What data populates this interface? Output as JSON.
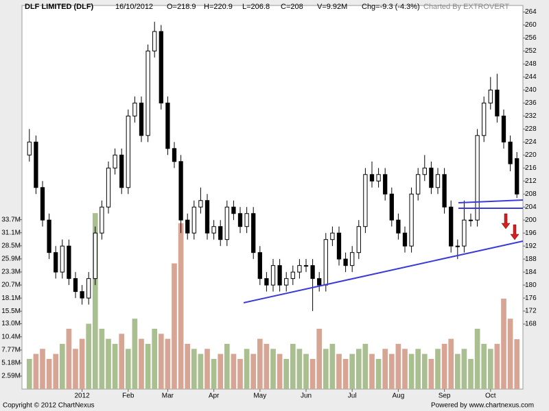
{
  "header": {
    "title": "DLF LIMITED (DLF)",
    "date": "16/10/2012",
    "open": "O=218.9",
    "high": "H=220.9",
    "low": "L=206.8",
    "close": "C=208",
    "volume": "V=9.92M",
    "change": "Chg=-9.3 (-4.3%)",
    "credit": "Charted By EXTROVERT"
  },
  "footer": {
    "copyright": "Copyright © 2012 ChartNexus",
    "powered": "Powered by www.chartnexus.com"
  },
  "chart_data": {
    "type": "candlestick",
    "categories": [
      null,
      null,
      null,
      null,
      null,
      null,
      null,
      null,
      "2012",
      null,
      null,
      null,
      null,
      null,
      null,
      "Feb",
      null,
      null,
      null,
      null,
      null,
      "Mar",
      null,
      null,
      null,
      null,
      null,
      null,
      "Apr",
      null,
      null,
      null,
      null,
      null,
      null,
      "May",
      null,
      null,
      null,
      null,
      null,
      null,
      "Jun",
      null,
      null,
      null,
      null,
      null,
      null,
      "Jul",
      null,
      null,
      null,
      null,
      null,
      null,
      "Aug",
      null,
      null,
      null,
      null,
      null,
      null,
      "Sep",
      null,
      null,
      null,
      null,
      null,
      null,
      "Oct",
      null,
      null,
      null,
      null
    ],
    "open": [
      220,
      224,
      210,
      200,
      190,
      184,
      192,
      182,
      178,
      176,
      182,
      196,
      204,
      216,
      220,
      210,
      232,
      236,
      226,
      252,
      258,
      236,
      222,
      218,
      200,
      196,
      204,
      206,
      196,
      198,
      194,
      204,
      202,
      198,
      202,
      190,
      182,
      180,
      186,
      180,
      182,
      184,
      186,
      186,
      182,
      180,
      194,
      196,
      188,
      186,
      190,
      198,
      214,
      212,
      214,
      208,
      200,
      196,
      192,
      208,
      214,
      216,
      210,
      214,
      204,
      192,
      192,
      200,
      200,
      226,
      236,
      240,
      232,
      224,
      218.9
    ],
    "high": [
      228,
      226,
      212,
      202,
      192,
      194,
      194,
      184,
      180,
      184,
      198,
      206,
      218,
      222,
      222,
      234,
      238,
      238,
      254,
      261,
      260,
      238,
      224,
      220,
      202,
      206,
      210,
      208,
      200,
      200,
      206,
      206,
      204,
      204,
      204,
      192,
      184,
      188,
      188,
      184,
      186,
      188,
      188,
      188,
      184,
      196,
      198,
      198,
      190,
      192,
      200,
      216,
      218,
      216,
      216,
      210,
      202,
      198,
      210,
      216,
      220,
      218,
      216,
      216,
      206,
      194,
      206,
      202,
      228,
      238,
      244,
      245,
      234,
      226,
      220.9
    ],
    "low": [
      218,
      208,
      198,
      188,
      182,
      182,
      180,
      176,
      174,
      174,
      180,
      194,
      202,
      214,
      208,
      208,
      230,
      224,
      224,
      250,
      234,
      220,
      216,
      196,
      194,
      194,
      202,
      194,
      194,
      192,
      192,
      200,
      196,
      196,
      188,
      180,
      178,
      178,
      178,
      178,
      180,
      182,
      184,
      172,
      178,
      178,
      192,
      186,
      184,
      184,
      188,
      196,
      210,
      210,
      206,
      198,
      194,
      190,
      190,
      206,
      212,
      208,
      208,
      202,
      190,
      188,
      190,
      198,
      198,
      224,
      234,
      230,
      222,
      215,
      206.8
    ],
    "close": [
      224,
      210,
      200,
      190,
      184,
      192,
      182,
      178,
      176,
      182,
      196,
      204,
      216,
      220,
      210,
      232,
      236,
      226,
      252,
      258,
      236,
      222,
      218,
      200,
      196,
      204,
      206,
      196,
      198,
      194,
      204,
      202,
      198,
      202,
      190,
      182,
      180,
      186,
      180,
      182,
      184,
      186,
      186,
      182,
      180,
      194,
      196,
      188,
      186,
      190,
      198,
      214,
      212,
      214,
      208,
      200,
      196,
      192,
      208,
      214,
      216,
      210,
      214,
      204,
      192,
      192,
      200,
      200,
      226,
      236,
      240,
      232,
      224,
      217.3,
      208
    ],
    "volume": [
      6,
      7,
      8,
      6,
      7,
      9,
      12,
      8,
      10,
      13,
      35,
      12,
      10,
      9,
      11,
      8,
      14,
      10,
      9,
      12,
      11,
      10,
      25,
      33,
      9,
      8,
      7,
      8,
      6,
      7,
      9,
      7,
      6,
      8,
      7,
      10,
      9,
      8,
      7,
      6,
      9,
      8,
      7,
      6,
      12,
      8,
      9,
      7,
      6,
      7,
      8,
      9,
      7,
      6,
      8,
      7,
      9,
      8,
      7,
      8,
      7,
      6,
      8,
      9,
      10,
      7,
      8,
      6,
      12,
      9,
      8,
      9,
      18,
      14,
      9.92
    ],
    "up_color": "#ffffff",
    "down_color": "#000000",
    "volume_up_color": "#a9bf90",
    "volume_down_color": "#d7a594",
    "ylim": [
      148,
      266
    ],
    "yticks": [
      168,
      172,
      176,
      180,
      184,
      188,
      192,
      196,
      200,
      204,
      208,
      212,
      216,
      220,
      224,
      228,
      232,
      236,
      240,
      244,
      248,
      252,
      256,
      260,
      264
    ],
    "y2lim": [
      0,
      76.3
    ],
    "y2ticks": [
      {
        "value": 2.59,
        "label": "2.59M"
      },
      {
        "value": 5.18,
        "label": "5.18M"
      },
      {
        "value": 7.77,
        "label": "7.77M"
      },
      {
        "value": 10.4,
        "label": "10.4M"
      },
      {
        "value": 13.0,
        "label": "13.0M"
      },
      {
        "value": 15.5,
        "label": "15.5M"
      },
      {
        "value": 18.1,
        "label": "18.1M"
      },
      {
        "value": 20.7,
        "label": "20.7M"
      },
      {
        "value": 23.3,
        "label": "23.3M"
      },
      {
        "value": 25.9,
        "label": "25.9M"
      },
      {
        "value": 28.5,
        "label": "28.5M"
      },
      {
        "value": 31.1,
        "label": "31.1M"
      },
      {
        "value": 33.7,
        "label": "33.7M"
      }
    ]
  }
}
